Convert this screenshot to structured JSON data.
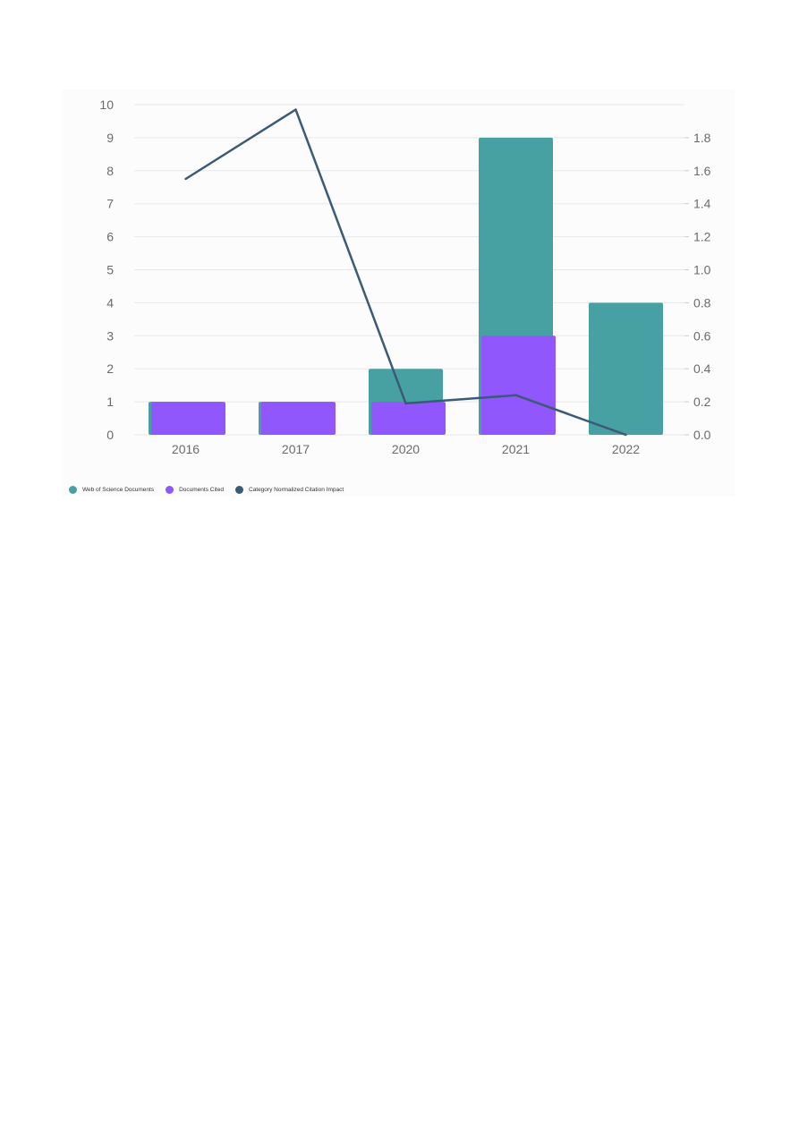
{
  "chart_data": {
    "type": "bar",
    "categories": [
      "2016",
      "2017",
      "2020",
      "2021",
      "2022"
    ],
    "series": [
      {
        "name": "Web of Science Documents",
        "type": "bar",
        "axis": "left",
        "color": "#47a1a3",
        "values": [
          1,
          1,
          2,
          9,
          4
        ]
      },
      {
        "name": "Documents Cited",
        "type": "bar",
        "axis": "left",
        "color": "#9057fc",
        "values": [
          1,
          1,
          1,
          3,
          null
        ]
      },
      {
        "name": "Category Normalized Citation Impact",
        "type": "line",
        "axis": "right",
        "color": "#3c5a75",
        "values": [
          1.55,
          1.97,
          0.19,
          0.24,
          0.0
        ]
      }
    ],
    "y_left": {
      "ylim": [
        0,
        10
      ],
      "ticks": [
        "0",
        "1",
        "2",
        "3",
        "4",
        "5",
        "6",
        "7",
        "8",
        "9",
        "10"
      ]
    },
    "y_right": {
      "ylim": [
        0,
        2.0
      ],
      "ticks": [
        "0.0",
        "0.2",
        "0.4",
        "0.6",
        "0.8",
        "1.0",
        "1.2",
        "1.4",
        "1.6",
        "1.8"
      ]
    },
    "grid": true,
    "legend_position": "bottom-left"
  }
}
